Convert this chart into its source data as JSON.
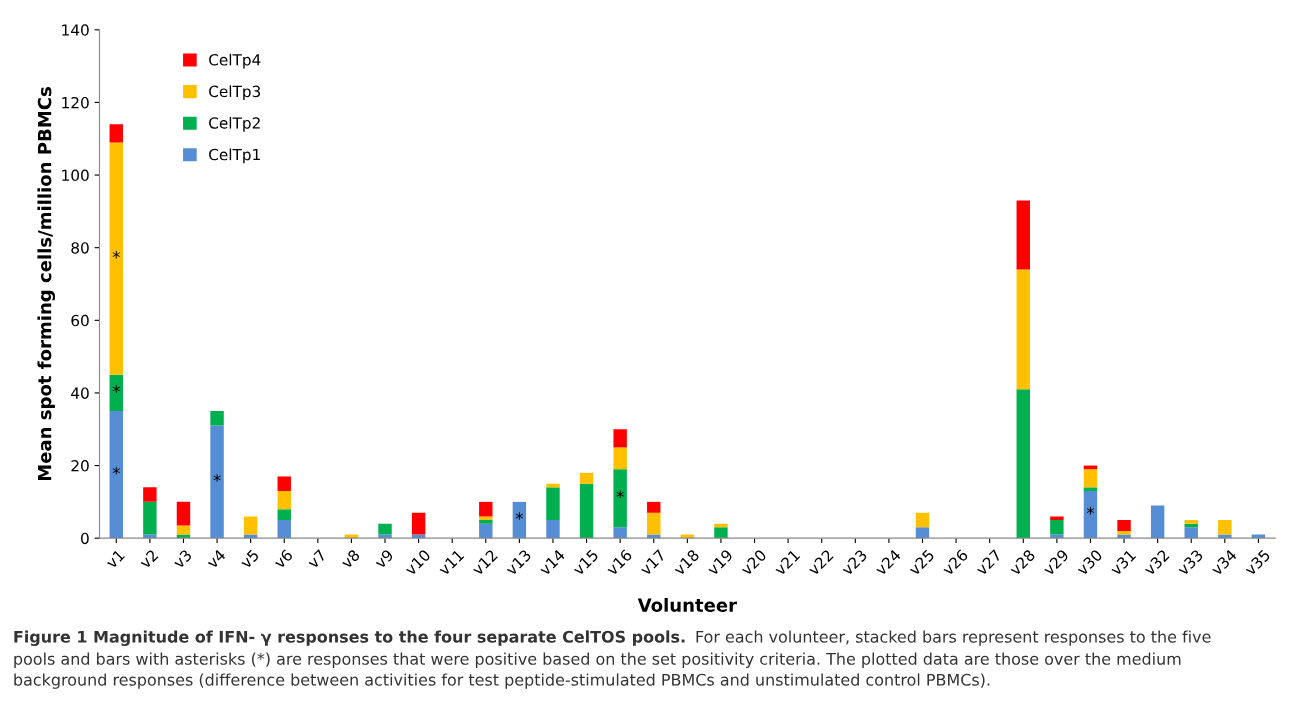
{
  "chart_data": {
    "type": "bar",
    "stacked": true,
    "xlabel": "Volunteer",
    "ylabel": "Mean spot forming cells/million PBMCs",
    "categories": [
      "v1",
      "v2",
      "v3",
      "v4",
      "v5",
      "v6",
      "v7",
      "v8",
      "v9",
      "v10",
      "v11",
      "v12",
      "v13",
      "v14",
      "v15",
      "v16",
      "v17",
      "v18",
      "v19",
      "v20",
      "v21",
      "v22",
      "v23",
      "v24",
      "v25",
      "v26",
      "v27",
      "v28",
      "v29",
      "v30",
      "v31",
      "v32",
      "v33",
      "v34",
      "v35"
    ],
    "series": [
      {
        "name": "CelTp1",
        "color": "#558ed5",
        "values": [
          35,
          1,
          0,
          31,
          1,
          5,
          0,
          0,
          1,
          1,
          0,
          4,
          10,
          5,
          0,
          3,
          1,
          0,
          0,
          0,
          0,
          0,
          0,
          0,
          3,
          0,
          0,
          0,
          1,
          13,
          1,
          9,
          3,
          1,
          1
        ],
        "value_labels": [
          "*",
          null,
          null,
          "*",
          null,
          null,
          null,
          null,
          null,
          null,
          null,
          null,
          "*",
          null,
          null,
          null,
          null,
          null,
          null,
          null,
          null,
          null,
          null,
          null,
          null,
          null,
          null,
          null,
          null,
          "*",
          null,
          null,
          null,
          null,
          null
        ]
      },
      {
        "name": "CelTp2",
        "color": "#00b050",
        "values": [
          10,
          9,
          1,
          4,
          0,
          3,
          0,
          0,
          3,
          0,
          0,
          1,
          0,
          9,
          15,
          16,
          0,
          0,
          3,
          0,
          0,
          0,
          0,
          0,
          0,
          0,
          0,
          41,
          4,
          1,
          0,
          0,
          1,
          0,
          0
        ],
        "value_labels": [
          "*",
          null,
          null,
          null,
          null,
          null,
          null,
          null,
          null,
          null,
          null,
          null,
          null,
          null,
          null,
          "*",
          null,
          null,
          null,
          null,
          null,
          null,
          null,
          null,
          null,
          null,
          null,
          null,
          null,
          null,
          null,
          null,
          null,
          null,
          null
        ]
      },
      {
        "name": "CelTp3",
        "color": "#ffc000",
        "values": [
          64,
          0,
          2.5,
          0,
          5,
          5,
          0,
          1,
          0,
          0,
          0,
          1,
          0,
          1,
          3,
          6,
          6,
          1,
          1,
          0,
          0,
          0,
          0,
          0,
          4,
          0,
          0,
          33,
          0,
          5,
          1,
          0,
          1,
          4,
          0
        ],
        "value_labels": [
          "*",
          null,
          null,
          null,
          null,
          null,
          null,
          null,
          null,
          null,
          null,
          null,
          null,
          null,
          null,
          null,
          null,
          null,
          null,
          null,
          null,
          null,
          null,
          null,
          null,
          null,
          null,
          null,
          null,
          null,
          null,
          null,
          null,
          null,
          null
        ]
      },
      {
        "name": "CelTp4",
        "color": "#ff0000",
        "values": [
          5,
          4,
          6.5,
          0,
          0,
          4,
          0,
          0,
          0,
          6,
          0,
          4,
          0,
          0,
          0,
          5,
          3,
          0,
          0,
          0,
          0,
          0,
          0,
          0,
          0,
          0,
          0,
          19,
          1,
          1,
          3,
          0,
          0,
          0,
          0
        ]
      }
    ],
    "ylim": [
      0,
      140
    ],
    "yticks": [
      0,
      20,
      40,
      60,
      80,
      100,
      120,
      140
    ],
    "grid": false,
    "legend": "top left",
    "annotations": [
      "Figure 1 Magnitude of IFN- γ responses to the four separate CelTOS pools.",
      "For each volunteer, stacked bars represent responses to the five\npools and bars with asterisks (*) are responses that were positive based on the set positivity criteria. The plotted data are those over the medium\nbackground responses (difference between activities for test peptide-stimulated PBMCs and unstimulated control PBMCs)."
    ]
  }
}
